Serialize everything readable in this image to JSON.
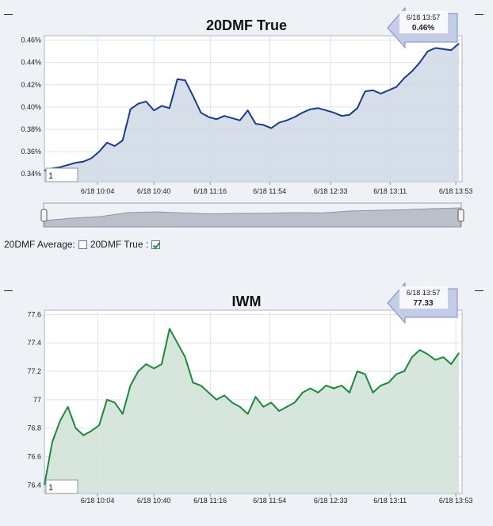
{
  "chart_data": [
    {
      "type": "area",
      "title": "20DMF True",
      "color": "#1a3d8a",
      "fill": "#cfd8e6",
      "xlim": [
        "6/18 09:30",
        "6/18 13:57"
      ],
      "ylim": [
        0.333,
        0.464
      ],
      "xticks": [
        "6/18 10:04",
        "6/18 10:40",
        "6/18 11:16",
        "6/18 11:54",
        "6/18 12:33",
        "6/18 13:11",
        "6/18 13:53"
      ],
      "yticks": [
        "0.46%",
        "0.44%",
        "0.42%",
        "0.40%",
        "0.38%",
        "0.36%",
        "0.34%"
      ],
      "ytick_values": [
        0.46,
        0.44,
        0.42,
        0.4,
        0.38,
        0.36,
        0.34
      ],
      "input_value": "1",
      "callout": {
        "time": "6/18 13:57",
        "value": "0.46%"
      },
      "points": [
        [
          "09:30",
          0.343
        ],
        [
          "09:35",
          0.345
        ],
        [
          "09:40",
          0.346
        ],
        [
          "09:45",
          0.348
        ],
        [
          "09:50",
          0.35
        ],
        [
          "09:55",
          0.351
        ],
        [
          "10:00",
          0.354
        ],
        [
          "10:05",
          0.36
        ],
        [
          "10:10",
          0.368
        ],
        [
          "10:15",
          0.365
        ],
        [
          "10:20",
          0.37
        ],
        [
          "10:25",
          0.398
        ],
        [
          "10:30",
          0.403
        ],
        [
          "10:35",
          0.405
        ],
        [
          "10:40",
          0.397
        ],
        [
          "10:45",
          0.401
        ],
        [
          "10:50",
          0.399
        ],
        [
          "10:55",
          0.425
        ],
        [
          "11:00",
          0.424
        ],
        [
          "11:05",
          0.41
        ],
        [
          "11:10",
          0.395
        ],
        [
          "11:15",
          0.391
        ],
        [
          "11:20",
          0.389
        ],
        [
          "11:25",
          0.392
        ],
        [
          "11:30",
          0.39
        ],
        [
          "11:35",
          0.388
        ],
        [
          "11:40",
          0.397
        ],
        [
          "11:45",
          0.385
        ],
        [
          "11:50",
          0.384
        ],
        [
          "11:55",
          0.381
        ],
        [
          "12:00",
          0.386
        ],
        [
          "12:05",
          0.388
        ],
        [
          "12:10",
          0.391
        ],
        [
          "12:15",
          0.395
        ],
        [
          "12:20",
          0.398
        ],
        [
          "12:25",
          0.399
        ],
        [
          "12:30",
          0.397
        ],
        [
          "12:35",
          0.395
        ],
        [
          "12:40",
          0.392
        ],
        [
          "12:45",
          0.393
        ],
        [
          "12:50",
          0.399
        ],
        [
          "12:55",
          0.414
        ],
        [
          "13:00",
          0.415
        ],
        [
          "13:05",
          0.412
        ],
        [
          "13:10",
          0.415
        ],
        [
          "13:15",
          0.418
        ],
        [
          "13:20",
          0.426
        ],
        [
          "13:25",
          0.432
        ],
        [
          "13:30",
          0.44
        ],
        [
          "13:35",
          0.45
        ],
        [
          "13:40",
          0.453
        ],
        [
          "13:45",
          0.452
        ],
        [
          "13:50",
          0.451
        ],
        [
          "13:55",
          0.457
        ]
      ]
    },
    {
      "type": "area",
      "title": "IWM",
      "color": "#1a8a3a",
      "fill": "#cfe2d6",
      "xlim": [
        "6/18 09:30",
        "6/18 13:57"
      ],
      "ylim": [
        76.34,
        77.63
      ],
      "xticks": [
        "6/18 10:04",
        "6/18 10:40",
        "6/18 11:16",
        "6/18 11:54",
        "6/18 12:33",
        "6/18 13:11",
        "6/18 13:53"
      ],
      "yticks": [
        "77.6",
        "77.4",
        "77.2",
        "77",
        "76.8",
        "76.6",
        "76.4"
      ],
      "ytick_values": [
        77.6,
        77.4,
        77.2,
        77.0,
        76.8,
        76.6,
        76.4
      ],
      "input_value": "1",
      "callout": {
        "time": "6/18 13:57",
        "value": "77.33"
      },
      "points": [
        [
          "09:30",
          76.4
        ],
        [
          "09:35",
          76.7
        ],
        [
          "09:40",
          76.85
        ],
        [
          "09:45",
          76.95
        ],
        [
          "09:50",
          76.8
        ],
        [
          "09:55",
          76.75
        ],
        [
          "10:00",
          76.78
        ],
        [
          "10:05",
          76.82
        ],
        [
          "10:10",
          77.0
        ],
        [
          "10:15",
          76.98
        ],
        [
          "10:20",
          76.9
        ],
        [
          "10:25",
          77.1
        ],
        [
          "10:30",
          77.2
        ],
        [
          "10:35",
          77.25
        ],
        [
          "10:40",
          77.22
        ],
        [
          "10:45",
          77.25
        ],
        [
          "10:50",
          77.5
        ],
        [
          "10:55",
          77.4
        ],
        [
          "11:00",
          77.3
        ],
        [
          "11:05",
          77.12
        ],
        [
          "11:10",
          77.1
        ],
        [
          "11:15",
          77.05
        ],
        [
          "11:20",
          77.0
        ],
        [
          "11:25",
          77.03
        ],
        [
          "11:30",
          76.98
        ],
        [
          "11:35",
          76.95
        ],
        [
          "11:40",
          76.9
        ],
        [
          "11:45",
          77.02
        ],
        [
          "11:50",
          76.95
        ],
        [
          "11:55",
          76.98
        ],
        [
          "12:00",
          76.92
        ],
        [
          "12:05",
          76.95
        ],
        [
          "12:10",
          76.98
        ],
        [
          "12:15",
          77.05
        ],
        [
          "12:20",
          77.08
        ],
        [
          "12:25",
          77.05
        ],
        [
          "12:30",
          77.1
        ],
        [
          "12:35",
          77.08
        ],
        [
          "12:40",
          77.1
        ],
        [
          "12:45",
          77.05
        ],
        [
          "12:50",
          77.2
        ],
        [
          "12:55",
          77.18
        ],
        [
          "13:00",
          77.05
        ],
        [
          "13:05",
          77.1
        ],
        [
          "13:10",
          77.12
        ],
        [
          "13:15",
          77.18
        ],
        [
          "13:20",
          77.2
        ],
        [
          "13:25",
          77.3
        ],
        [
          "13:30",
          77.35
        ],
        [
          "13:35",
          77.32
        ],
        [
          "13:40",
          77.28
        ],
        [
          "13:45",
          77.3
        ],
        [
          "13:50",
          77.25
        ],
        [
          "13:55",
          77.33
        ]
      ]
    }
  ],
  "navigator": {
    "points": [
      0.2,
      0.35,
      0.45,
      0.7,
      0.75,
      0.68,
      0.62,
      0.65,
      0.66,
      0.7,
      0.68,
      0.8,
      0.85,
      0.88,
      0.95,
      1.0
    ]
  },
  "legend": {
    "avg_label": "20DMF Average:",
    "avg_checked": false,
    "true_label": "20DMF True :",
    "true_checked": true
  }
}
